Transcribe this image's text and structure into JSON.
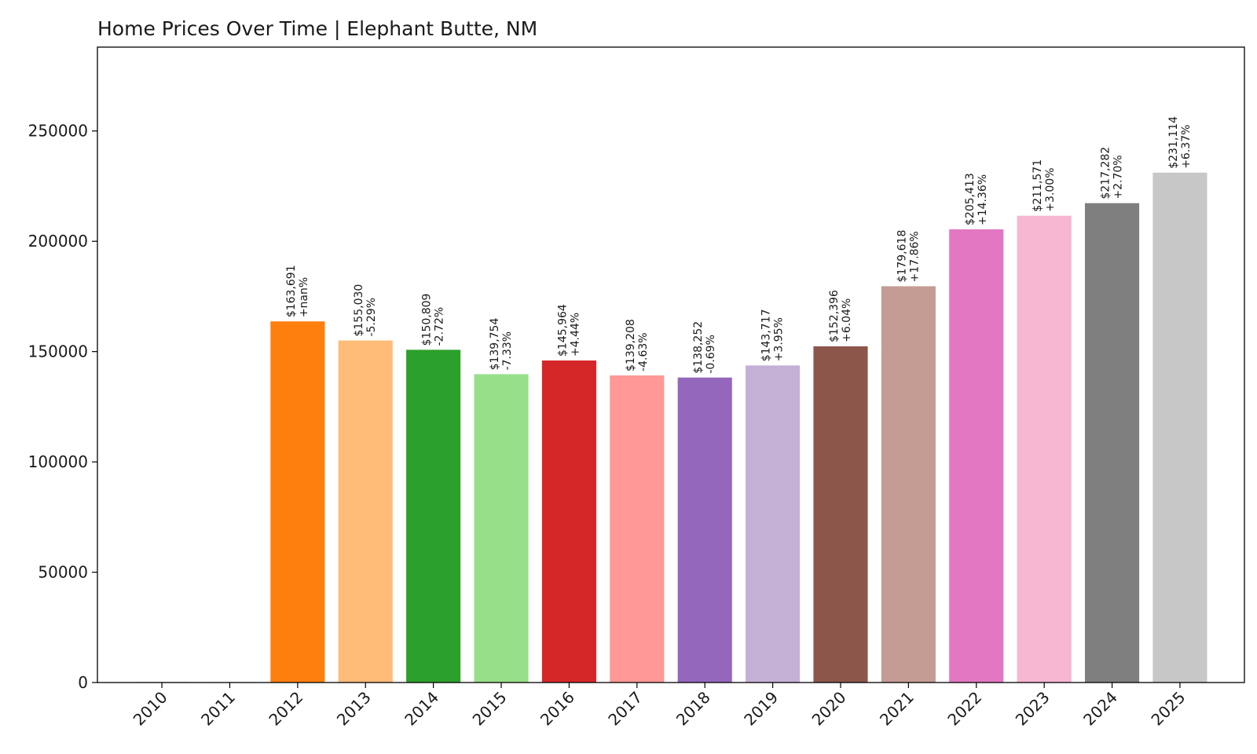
{
  "chart_data": {
    "type": "bar",
    "title": "Home Prices Over Time | Elephant Butte, NM",
    "xlabel": "",
    "ylabel": "",
    "categories": [
      "2010",
      "2011",
      "2012",
      "2013",
      "2014",
      "2015",
      "2016",
      "2017",
      "2018",
      "2019",
      "2020",
      "2021",
      "2022",
      "2023",
      "2024",
      "2025"
    ],
    "values": [
      0,
      0,
      163691,
      155030,
      150809,
      139754,
      145964,
      139208,
      138252,
      143717,
      152396,
      179618,
      205413,
      211571,
      217282,
      231114
    ],
    "value_labels": [
      "",
      "",
      "$163,691",
      "$155,030",
      "$150,809",
      "$139,754",
      "$145,964",
      "$139,208",
      "$138,252",
      "$143,717",
      "$152,396",
      "$179,618",
      "$205,413",
      "$211,571",
      "$217,282",
      "$231,114"
    ],
    "change_labels": [
      "",
      "",
      "+nan%",
      "-5.29%",
      "-2.72%",
      "-7.33%",
      "+4.44%",
      "-4.63%",
      "-0.69%",
      "+3.95%",
      "+6.04%",
      "+17.86%",
      "+14.36%",
      "+3.00%",
      "+2.70%",
      "+6.37%"
    ],
    "colors": [
      "#1f77b4",
      "#aec7e8",
      "#ff7f0e",
      "#ffbb78",
      "#2ca02c",
      "#98df8a",
      "#d62728",
      "#ff9896",
      "#9467bd",
      "#c5b0d5",
      "#8c564b",
      "#c49c94",
      "#e377c2",
      "#f7b6d2",
      "#7f7f7f",
      "#c7c7c7"
    ],
    "yticks": [
      "0",
      "50000",
      "100000",
      "150000",
      "200000",
      "250000"
    ],
    "ylim": [
      0,
      288000
    ],
    "grid": false,
    "legend": "none"
  }
}
